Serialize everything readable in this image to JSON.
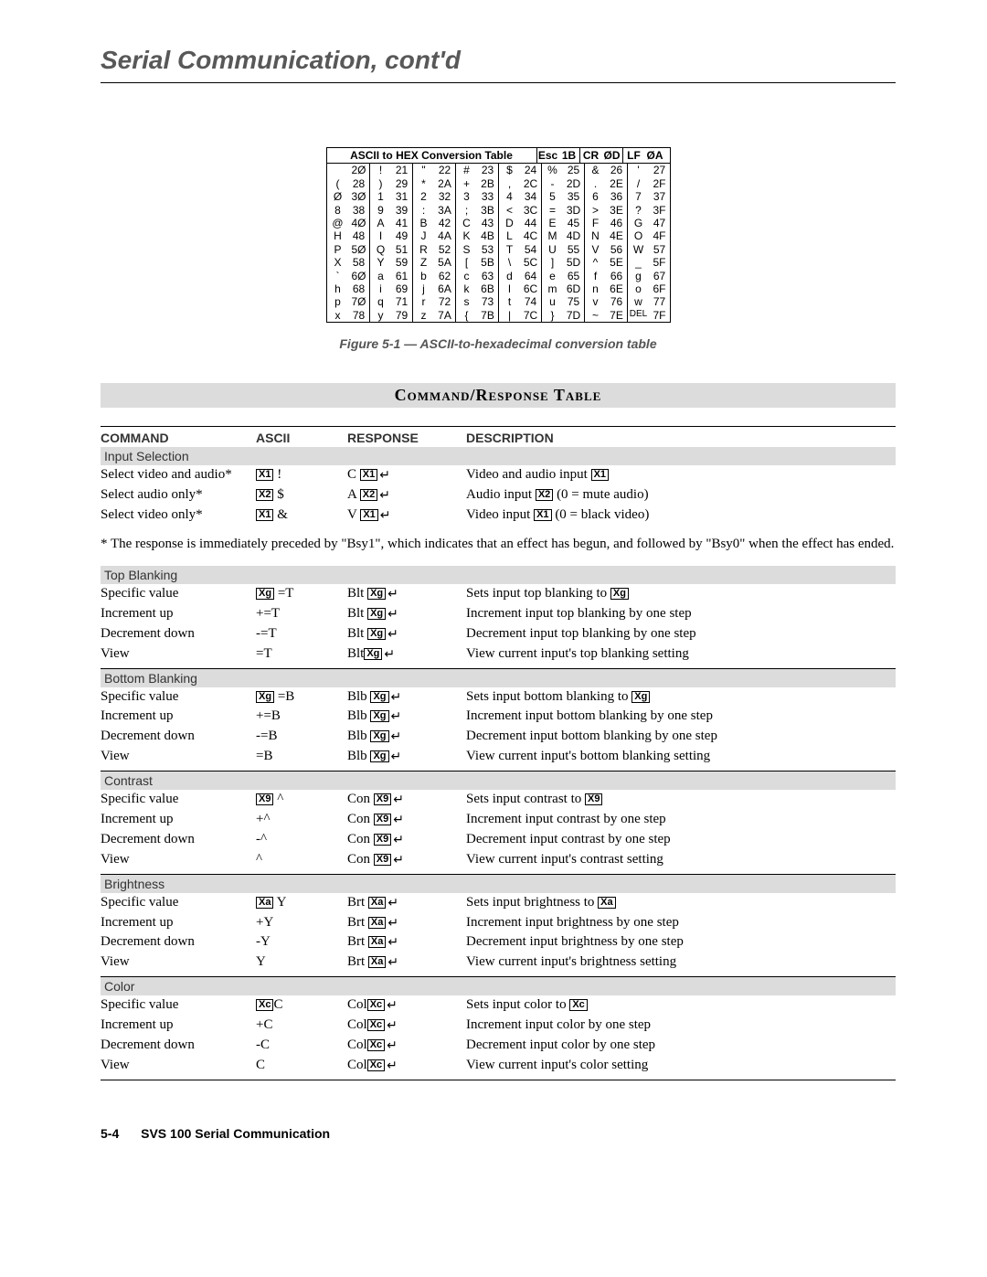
{
  "page_title": "Serial Communication, cont'd",
  "ascii_conversion": {
    "title": "ASCII to HEX  Conversion Table",
    "header_extras": [
      {
        "ch": "Esc",
        "hex": "1B"
      },
      {
        "ch": "CR",
        "hex": "ØD"
      },
      {
        "ch": "LF",
        "hex": "ØA"
      }
    ],
    "columns": [
      [
        {
          "ch": " ",
          "hex": "2Ø"
        },
        {
          "ch": "(",
          "hex": "28"
        },
        {
          "ch": "Ø",
          "hex": "3Ø"
        },
        {
          "ch": "8",
          "hex": "38"
        },
        {
          "ch": "@",
          "hex": "4Ø"
        },
        {
          "ch": "H",
          "hex": "48"
        },
        {
          "ch": "P",
          "hex": "5Ø"
        },
        {
          "ch": "X",
          "hex": "58"
        },
        {
          "ch": "`",
          "hex": "6Ø"
        },
        {
          "ch": "h",
          "hex": "68"
        },
        {
          "ch": "p",
          "hex": "7Ø"
        },
        {
          "ch": "x",
          "hex": "78"
        }
      ],
      [
        {
          "ch": "!",
          "hex": "21"
        },
        {
          "ch": ")",
          "hex": "29"
        },
        {
          "ch": "1",
          "hex": "31"
        },
        {
          "ch": "9",
          "hex": "39"
        },
        {
          "ch": "A",
          "hex": "41"
        },
        {
          "ch": "I",
          "hex": "49"
        },
        {
          "ch": "Q",
          "hex": "51"
        },
        {
          "ch": "Y",
          "hex": "59"
        },
        {
          "ch": "a",
          "hex": "61"
        },
        {
          "ch": "i",
          "hex": "69"
        },
        {
          "ch": "q",
          "hex": "71"
        },
        {
          "ch": "y",
          "hex": "79"
        }
      ],
      [
        {
          "ch": "\"",
          "hex": "22"
        },
        {
          "ch": "*",
          "hex": "2A"
        },
        {
          "ch": "2",
          "hex": "32"
        },
        {
          "ch": ":",
          "hex": "3A"
        },
        {
          "ch": "B",
          "hex": "42"
        },
        {
          "ch": "J",
          "hex": "4A"
        },
        {
          "ch": "R",
          "hex": "52"
        },
        {
          "ch": "Z",
          "hex": "5A"
        },
        {
          "ch": "b",
          "hex": "62"
        },
        {
          "ch": "j",
          "hex": "6A"
        },
        {
          "ch": "r",
          "hex": "72"
        },
        {
          "ch": "z",
          "hex": "7A"
        }
      ],
      [
        {
          "ch": "#",
          "hex": "23"
        },
        {
          "ch": "+",
          "hex": "2B"
        },
        {
          "ch": "3",
          "hex": "33"
        },
        {
          "ch": ";",
          "hex": "3B"
        },
        {
          "ch": "C",
          "hex": "43"
        },
        {
          "ch": "K",
          "hex": "4B"
        },
        {
          "ch": "S",
          "hex": "53"
        },
        {
          "ch": "[",
          "hex": "5B"
        },
        {
          "ch": "c",
          "hex": "63"
        },
        {
          "ch": "k",
          "hex": "6B"
        },
        {
          "ch": "s",
          "hex": "73"
        },
        {
          "ch": "{",
          "hex": "7B"
        }
      ],
      [
        {
          "ch": "$",
          "hex": "24"
        },
        {
          "ch": ",",
          "hex": "2C"
        },
        {
          "ch": "4",
          "hex": "34"
        },
        {
          "ch": "<",
          "hex": "3C"
        },
        {
          "ch": "D",
          "hex": "44"
        },
        {
          "ch": "L",
          "hex": "4C"
        },
        {
          "ch": "T",
          "hex": "54"
        },
        {
          "ch": "\\",
          "hex": "5C"
        },
        {
          "ch": "d",
          "hex": "64"
        },
        {
          "ch": "l",
          "hex": "6C"
        },
        {
          "ch": "t",
          "hex": "74"
        },
        {
          "ch": "|",
          "hex": "7C"
        }
      ],
      [
        {
          "ch": "%",
          "hex": "25"
        },
        {
          "ch": "-",
          "hex": "2D"
        },
        {
          "ch": "5",
          "hex": "35"
        },
        {
          "ch": "=",
          "hex": "3D"
        },
        {
          "ch": "E",
          "hex": "45"
        },
        {
          "ch": "M",
          "hex": "4D"
        },
        {
          "ch": "U",
          "hex": "55"
        },
        {
          "ch": "]",
          "hex": "5D"
        },
        {
          "ch": "e",
          "hex": "65"
        },
        {
          "ch": "m",
          "hex": "6D"
        },
        {
          "ch": "u",
          "hex": "75"
        },
        {
          "ch": "}",
          "hex": "7D"
        }
      ],
      [
        {
          "ch": "&",
          "hex": "26"
        },
        {
          "ch": ".",
          "hex": "2E"
        },
        {
          "ch": "6",
          "hex": "36"
        },
        {
          "ch": ">",
          "hex": "3E"
        },
        {
          "ch": "F",
          "hex": "46"
        },
        {
          "ch": "N",
          "hex": "4E"
        },
        {
          "ch": "V",
          "hex": "56"
        },
        {
          "ch": "^",
          "hex": "5E"
        },
        {
          "ch": "f",
          "hex": "66"
        },
        {
          "ch": "n",
          "hex": "6E"
        },
        {
          "ch": "v",
          "hex": "76"
        },
        {
          "ch": "~",
          "hex": "7E"
        }
      ],
      [
        {
          "ch": "'",
          "hex": "27"
        },
        {
          "ch": "/",
          "hex": "2F"
        },
        {
          "ch": "7",
          "hex": "37"
        },
        {
          "ch": "?",
          "hex": "3F"
        },
        {
          "ch": "G",
          "hex": "47"
        },
        {
          "ch": "O",
          "hex": "4F"
        },
        {
          "ch": "W",
          "hex": "57"
        },
        {
          "ch": "_",
          "hex": "5F"
        },
        {
          "ch": "g",
          "hex": "67"
        },
        {
          "ch": "o",
          "hex": "6F"
        },
        {
          "ch": "w",
          "hex": "77"
        },
        {
          "ch": "DEL",
          "hex": "7F"
        }
      ]
    ],
    "caption": "Figure 5-1 — ASCII-to-hexadecimal conversion table"
  },
  "crt": {
    "title": "Command/Response Table",
    "headers": {
      "command": "COMMAND",
      "ascii": "ASCII",
      "response": "RESPONSE",
      "description": "DESCRIPTION"
    },
    "note": "* The response is immediately preceded by \"Bsy1\", which indicates that an effect has begun, and followed by \"Bsy0\" when the effect has ended.",
    "sections": [
      {
        "title": "Input Selection",
        "rows": [
          {
            "cmd": "Select video and audio*",
            "ascii_var": "X1",
            "ascii_suffix": " !",
            "resp_prefix": "C ",
            "resp_var": "X1",
            "desc_prefix": "Video and audio input ",
            "desc_var": "X1",
            "desc_suffix": ""
          },
          {
            "cmd": "Select audio only*",
            "ascii_var": "X2",
            "ascii_suffix": " $",
            "resp_prefix": "A ",
            "resp_var": "X2",
            "desc_prefix": "Audio input ",
            "desc_var": "X2",
            "desc_suffix": " (0 = mute audio)"
          },
          {
            "cmd": "Select video only*",
            "ascii_var": "X1",
            "ascii_suffix": " &",
            "resp_prefix": "V ",
            "resp_var": "X1",
            "desc_prefix": "Video input ",
            "desc_var": "X1",
            "desc_suffix": " (0 = black video)"
          }
        ]
      },
      {
        "title": "Top Blanking",
        "rows": [
          {
            "cmd": "Specific value",
            "ascii_var": "Xg",
            "ascii_suffix": " =T",
            "resp_prefix": "Blt ",
            "resp_var": "Xg",
            "desc_prefix": "Sets input top blanking to ",
            "desc_var": "Xg",
            "desc_suffix": ""
          },
          {
            "cmd": "Increment up",
            "ascii_var": "",
            "ascii_suffix": "+=T",
            "resp_prefix": "Blt ",
            "resp_var": "Xg",
            "desc_prefix": "Increment input top blanking by one step",
            "desc_var": "",
            "desc_suffix": ""
          },
          {
            "cmd": "Decrement down",
            "ascii_var": "",
            "ascii_suffix": "-=T",
            "resp_prefix": "Blt ",
            "resp_var": "Xg",
            "desc_prefix": "Decrement input top blanking by one step",
            "desc_var": "",
            "desc_suffix": ""
          },
          {
            "cmd": "View",
            "ascii_var": "",
            "ascii_suffix": "=T",
            "resp_prefix": "Blt",
            "resp_var": "Xg",
            "desc_prefix": "View current input's top blanking setting",
            "desc_var": "",
            "desc_suffix": ""
          }
        ]
      },
      {
        "title": "Bottom Blanking",
        "rows": [
          {
            "cmd": "Specific value",
            "ascii_var": "Xg",
            "ascii_suffix": " =B",
            "resp_prefix": "Blb ",
            "resp_var": "Xg",
            "desc_prefix": "Sets input bottom blanking to ",
            "desc_var": "Xg",
            "desc_suffix": ""
          },
          {
            "cmd": "Increment up",
            "ascii_var": "",
            "ascii_suffix": "+=B",
            "resp_prefix": "Blb ",
            "resp_var": "Xg",
            "desc_prefix": "Increment input bottom blanking by one step",
            "desc_var": "",
            "desc_suffix": ""
          },
          {
            "cmd": "Decrement down",
            "ascii_var": "",
            "ascii_suffix": "-=B",
            "resp_prefix": "Blb ",
            "resp_var": "Xg",
            "desc_prefix": "Decrement input bottom blanking by one step",
            "desc_var": "",
            "desc_suffix": ""
          },
          {
            "cmd": "View",
            "ascii_var": "",
            "ascii_suffix": "=B",
            "resp_prefix": "Blb ",
            "resp_var": "Xg",
            "desc_prefix": "View current input's bottom blanking setting",
            "desc_var": "",
            "desc_suffix": ""
          }
        ]
      },
      {
        "title": "Contrast",
        "rows": [
          {
            "cmd": "Specific value",
            "ascii_var": "X9",
            "ascii_suffix": " ^",
            "resp_prefix": "Con ",
            "resp_var": "X9",
            "desc_prefix": "Sets input contrast to ",
            "desc_var": "X9",
            "desc_suffix": ""
          },
          {
            "cmd": "Increment up",
            "ascii_var": "",
            "ascii_suffix": "+^",
            "resp_prefix": "Con ",
            "resp_var": "X9",
            "desc_prefix": "Increment input contrast by one step",
            "desc_var": "",
            "desc_suffix": ""
          },
          {
            "cmd": "Decrement down",
            "ascii_var": "",
            "ascii_suffix": "-^",
            "resp_prefix": "Con ",
            "resp_var": "X9",
            "desc_prefix": "Decrement input contrast by one step",
            "desc_var": "",
            "desc_suffix": ""
          },
          {
            "cmd": "View",
            "ascii_var": "",
            "ascii_suffix": "^",
            "resp_prefix": "Con ",
            "resp_var": "X9",
            "desc_prefix": "View current input's  contrast setting",
            "desc_var": "",
            "desc_suffix": ""
          }
        ]
      },
      {
        "title": "Brightness",
        "rows": [
          {
            "cmd": "Specific value",
            "ascii_var": "Xa",
            "ascii_suffix": " Y",
            "resp_prefix": "Brt ",
            "resp_var": "Xa",
            "desc_prefix": "Sets input brightness to ",
            "desc_var": "Xa",
            "desc_suffix": ""
          },
          {
            "cmd": "Increment up",
            "ascii_var": "",
            "ascii_suffix": "+Y",
            "resp_prefix": "Brt ",
            "resp_var": "Xa",
            "desc_prefix": "Increment input brightness by one step",
            "desc_var": "",
            "desc_suffix": ""
          },
          {
            "cmd": "Decrement down",
            "ascii_var": "",
            "ascii_suffix": "-Y",
            "resp_prefix": "Brt ",
            "resp_var": "Xa",
            "desc_prefix": "Decrement input brightness by one step",
            "desc_var": "",
            "desc_suffix": ""
          },
          {
            "cmd": "View",
            "ascii_var": "",
            "ascii_suffix": "Y",
            "resp_prefix": "Brt ",
            "resp_var": "Xa",
            "desc_prefix": "View current input's brightness setting",
            "desc_var": "",
            "desc_suffix": ""
          }
        ]
      },
      {
        "title": "Color",
        "rows": [
          {
            "cmd": "Specific value",
            "ascii_var": "Xc",
            "ascii_suffix": "C",
            "resp_prefix": "Col",
            "resp_var": "Xc",
            "desc_prefix": "Sets input color to ",
            "desc_var": "Xc",
            "desc_suffix": ""
          },
          {
            "cmd": "Increment up",
            "ascii_var": "",
            "ascii_suffix": "+C",
            "resp_prefix": "Col",
            "resp_var": "Xc",
            "desc_prefix": "Increment input color by one step",
            "desc_var": "",
            "desc_suffix": ""
          },
          {
            "cmd": "Decrement down",
            "ascii_var": "",
            "ascii_suffix": "-C",
            "resp_prefix": "Col",
            "resp_var": "Xc",
            "desc_prefix": "Decrement input color by one step",
            "desc_var": "",
            "desc_suffix": ""
          },
          {
            "cmd": "View",
            "ascii_var": "",
            "ascii_suffix": "C",
            "resp_prefix": "Col",
            "resp_var": "Xc",
            "desc_prefix": "View current input's color setting",
            "desc_var": "",
            "desc_suffix": ""
          }
        ]
      }
    ]
  },
  "footer": {
    "page_num": "5-4",
    "title": "SVS 100 Serial Communication"
  }
}
